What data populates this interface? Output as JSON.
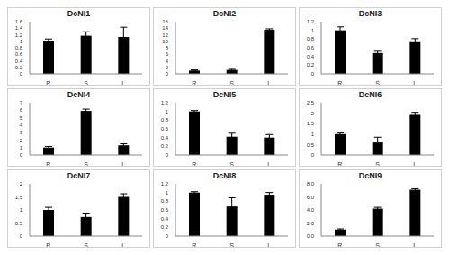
{
  "chart_data": [
    {
      "type": "bar",
      "title": "DcNI1",
      "categories": [
        "R",
        "S",
        "L"
      ],
      "values": [
        1.0,
        1.17,
        1.13
      ],
      "errors": [
        0.07,
        0.12,
        0.3
      ],
      "color": "#000000",
      "ylim": [
        0,
        1.6
      ],
      "yticks": [
        0,
        0.2,
        0.4,
        0.6,
        0.8,
        1,
        1.2,
        1.4,
        1.6
      ],
      "grid": false
    },
    {
      "type": "bar",
      "title": "DcNI2",
      "categories": [
        "R",
        "S",
        "L"
      ],
      "values": [
        1.0,
        1.2,
        13.5
      ],
      "errors": [
        0.2,
        0.2,
        0.3
      ],
      "color": "#000000",
      "ylim": [
        0,
        16
      ],
      "yticks": [
        0,
        2,
        4,
        6,
        8,
        10,
        12,
        14,
        16
      ],
      "grid": false
    },
    {
      "type": "bar",
      "title": "DcNI3",
      "categories": [
        "R",
        "S",
        "L"
      ],
      "values": [
        1.0,
        0.48,
        0.73
      ],
      "errors": [
        0.08,
        0.04,
        0.08
      ],
      "color": "#000000",
      "ylim": [
        0,
        1.2
      ],
      "yticks": [
        0,
        0.2,
        0.4,
        0.6,
        0.8,
        1,
        1.2
      ],
      "grid": false
    },
    {
      "type": "bar",
      "title": "DcNI4",
      "categories": [
        "R",
        "S",
        "L"
      ],
      "values": [
        1.0,
        5.9,
        1.3
      ],
      "errors": [
        0.15,
        0.25,
        0.2
      ],
      "color": "#000000",
      "ylim": [
        0,
        7
      ],
      "yticks": [
        0,
        1,
        2,
        3,
        4,
        5,
        6,
        7
      ],
      "grid": false
    },
    {
      "type": "bar",
      "title": "DcNI5",
      "categories": [
        "R",
        "S",
        "L"
      ],
      "values": [
        1.0,
        0.42,
        0.4
      ],
      "errors": [
        0.02,
        0.08,
        0.07
      ],
      "color": "#000000",
      "ylim": [
        0,
        1.2
      ],
      "yticks": [
        0,
        0.2,
        0.4,
        0.6,
        0.8,
        1,
        1.2
      ],
      "grid": false
    },
    {
      "type": "bar",
      "title": "DcNI6",
      "categories": [
        "R",
        "S",
        "L"
      ],
      "values": [
        1.0,
        0.6,
        1.92
      ],
      "errors": [
        0.05,
        0.25,
        0.12
      ],
      "color": "#000000",
      "ylim": [
        0,
        2.5
      ],
      "yticks": [
        0,
        0.5,
        1,
        1.5,
        2,
        2.5
      ],
      "grid": false
    },
    {
      "type": "bar",
      "title": "DcNI7",
      "categories": [
        "R",
        "S",
        "L"
      ],
      "values": [
        1.0,
        0.73,
        1.5
      ],
      "errors": [
        0.1,
        0.15,
        0.12
      ],
      "color": "#000000",
      "ylim": [
        0,
        2
      ],
      "yticks": [
        0,
        0.5,
        1,
        1.5,
        2
      ],
      "grid": false
    },
    {
      "type": "bar",
      "title": "DcNI8",
      "categories": [
        "R",
        "S",
        "L"
      ],
      "values": [
        1.0,
        0.68,
        0.95
      ],
      "errors": [
        0.02,
        0.2,
        0.05
      ],
      "color": "#000000",
      "ylim": [
        0,
        1.2
      ],
      "yticks": [
        0,
        0.2,
        0.4,
        0.6,
        0.8,
        1,
        1.2
      ],
      "grid": false
    },
    {
      "type": "bar",
      "title": "DcNI9",
      "categories": [
        "R",
        "S",
        "L"
      ],
      "values": [
        1.0,
        4.2,
        7.1
      ],
      "errors": [
        0.1,
        0.2,
        0.15
      ],
      "color": "#000000",
      "ylim": [
        0,
        8
      ],
      "yticks": [
        {
          "value": 0,
          "label": "0.0"
        },
        {
          "value": 2,
          "label": "2.0"
        },
        {
          "value": 4,
          "label": "4.0"
        },
        {
          "value": 6,
          "label": "6.0"
        },
        {
          "value": 8,
          "label": "8.0"
        }
      ],
      "grid": false
    }
  ]
}
